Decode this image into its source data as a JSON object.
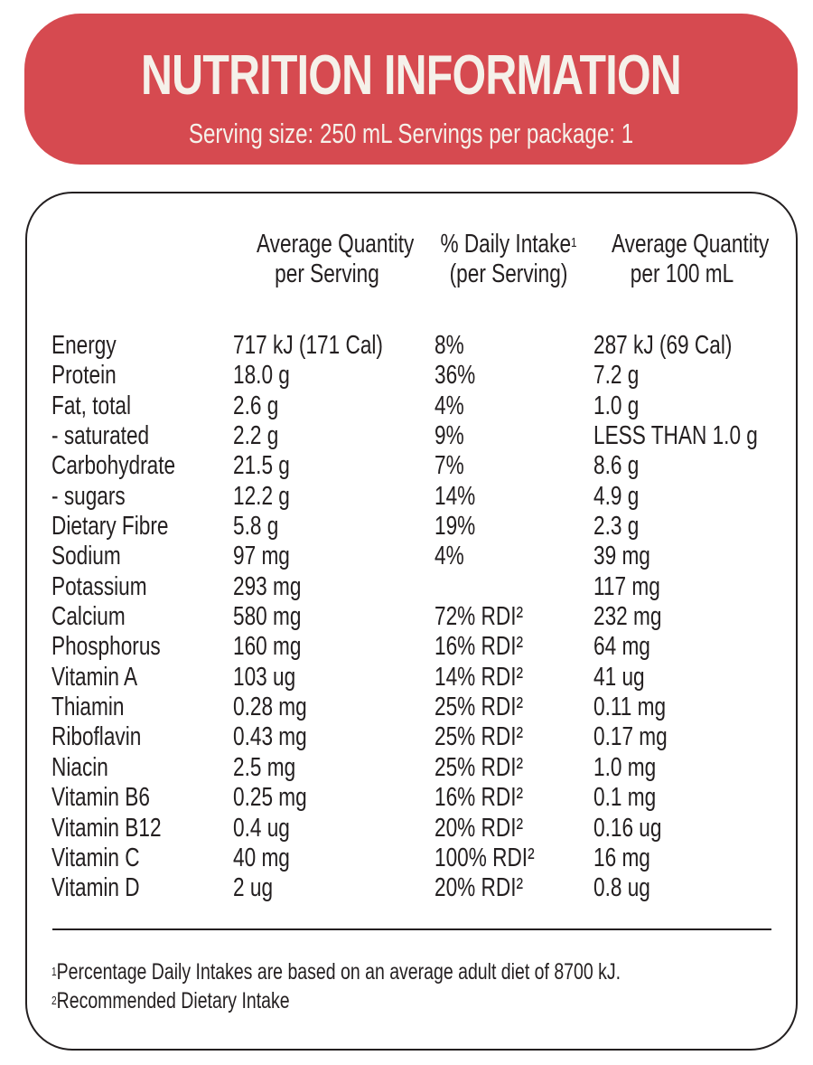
{
  "header": {
    "title": "NUTRITION INFORMATION",
    "subtitle": "Serving size: 250 mL Servings per package: 1",
    "color": "#d64a50"
  },
  "columns": {
    "per_serving": [
      "Average Quantity",
      "per Serving"
    ],
    "daily_intake": [
      "% Daily Intake",
      "(per Serving)"
    ],
    "daily_intake_sup": "1",
    "per_100ml": [
      "Average Quantity",
      "per 100 mL"
    ]
  },
  "rows": [
    {
      "nutrient": "Energy",
      "per_serving": "717 kJ (171 Cal)",
      "daily_intake": "8%",
      "per_100ml": "287 kJ (69 Cal)"
    },
    {
      "nutrient": "Protein",
      "per_serving": "18.0 g",
      "daily_intake": "36%",
      "per_100ml": "7.2 g"
    },
    {
      "nutrient": "Fat, total",
      "per_serving": "2.6 g",
      "daily_intake": "4%",
      "per_100ml": "1.0 g"
    },
    {
      "nutrient": "- saturated",
      "per_serving": "2.2 g",
      "daily_intake": "9%",
      "per_100ml": "LESS THAN 1.0 g"
    },
    {
      "nutrient": "Carbohydrate",
      "per_serving": "21.5 g",
      "daily_intake": "7%",
      "per_100ml": "8.6 g"
    },
    {
      "nutrient": "- sugars",
      "per_serving": "12.2 g",
      "daily_intake": "14%",
      "per_100ml": "4.9 g"
    },
    {
      "nutrient": "Dietary Fibre",
      "per_serving": "5.8 g",
      "daily_intake": "19%",
      "per_100ml": "2.3 g"
    },
    {
      "nutrient": "Sodium",
      "per_serving": "97 mg",
      "daily_intake": "4%",
      "per_100ml": "39 mg"
    },
    {
      "nutrient": "Potassium",
      "per_serving": "293 mg",
      "daily_intake": "",
      "per_100ml": "117 mg"
    },
    {
      "nutrient": "Calcium",
      "per_serving": "580 mg",
      "daily_intake": "72% RDI²",
      "per_100ml": "232 mg"
    },
    {
      "nutrient": "Phosphorus",
      "per_serving": "160 mg",
      "daily_intake": "16% RDI²",
      "per_100ml": "64 mg"
    },
    {
      "nutrient": "Vitamin A",
      "per_serving": "103 ug",
      "daily_intake": "14% RDI²",
      "per_100ml": "41 ug"
    },
    {
      "nutrient": "Thiamin",
      "per_serving": "0.28 mg",
      "daily_intake": "25% RDI²",
      "per_100ml": "0.11 mg"
    },
    {
      "nutrient": "Riboflavin",
      "per_serving": "0.43 mg",
      "daily_intake": "25% RDI²",
      "per_100ml": "0.17 mg"
    },
    {
      "nutrient": "Niacin",
      "per_serving": "2.5 mg",
      "daily_intake": "25% RDI²",
      "per_100ml": "1.0 mg"
    },
    {
      "nutrient": "Vitamin B6",
      "per_serving": "0.25 mg",
      "daily_intake": "16% RDI²",
      "per_100ml": "0.1 mg"
    },
    {
      "nutrient": "Vitamin B12",
      "per_serving": "0.4 ug",
      "daily_intake": "20% RDI²",
      "per_100ml": "0.16 ug"
    },
    {
      "nutrient": "Vitamin C",
      "per_serving": "40 mg",
      "daily_intake": "100% RDI²",
      "per_100ml": "16 mg"
    },
    {
      "nutrient": "Vitamin D",
      "per_serving": "2 ug",
      "daily_intake": "20% RDI²",
      "per_100ml": "0.8 ug"
    }
  ],
  "footnotes": [
    {
      "mark": "1",
      "text": "Percentage Daily Intakes are based on an average adult diet of 8700 kJ."
    },
    {
      "mark": "2",
      "text": "Recommended Dietary Intake"
    }
  ]
}
